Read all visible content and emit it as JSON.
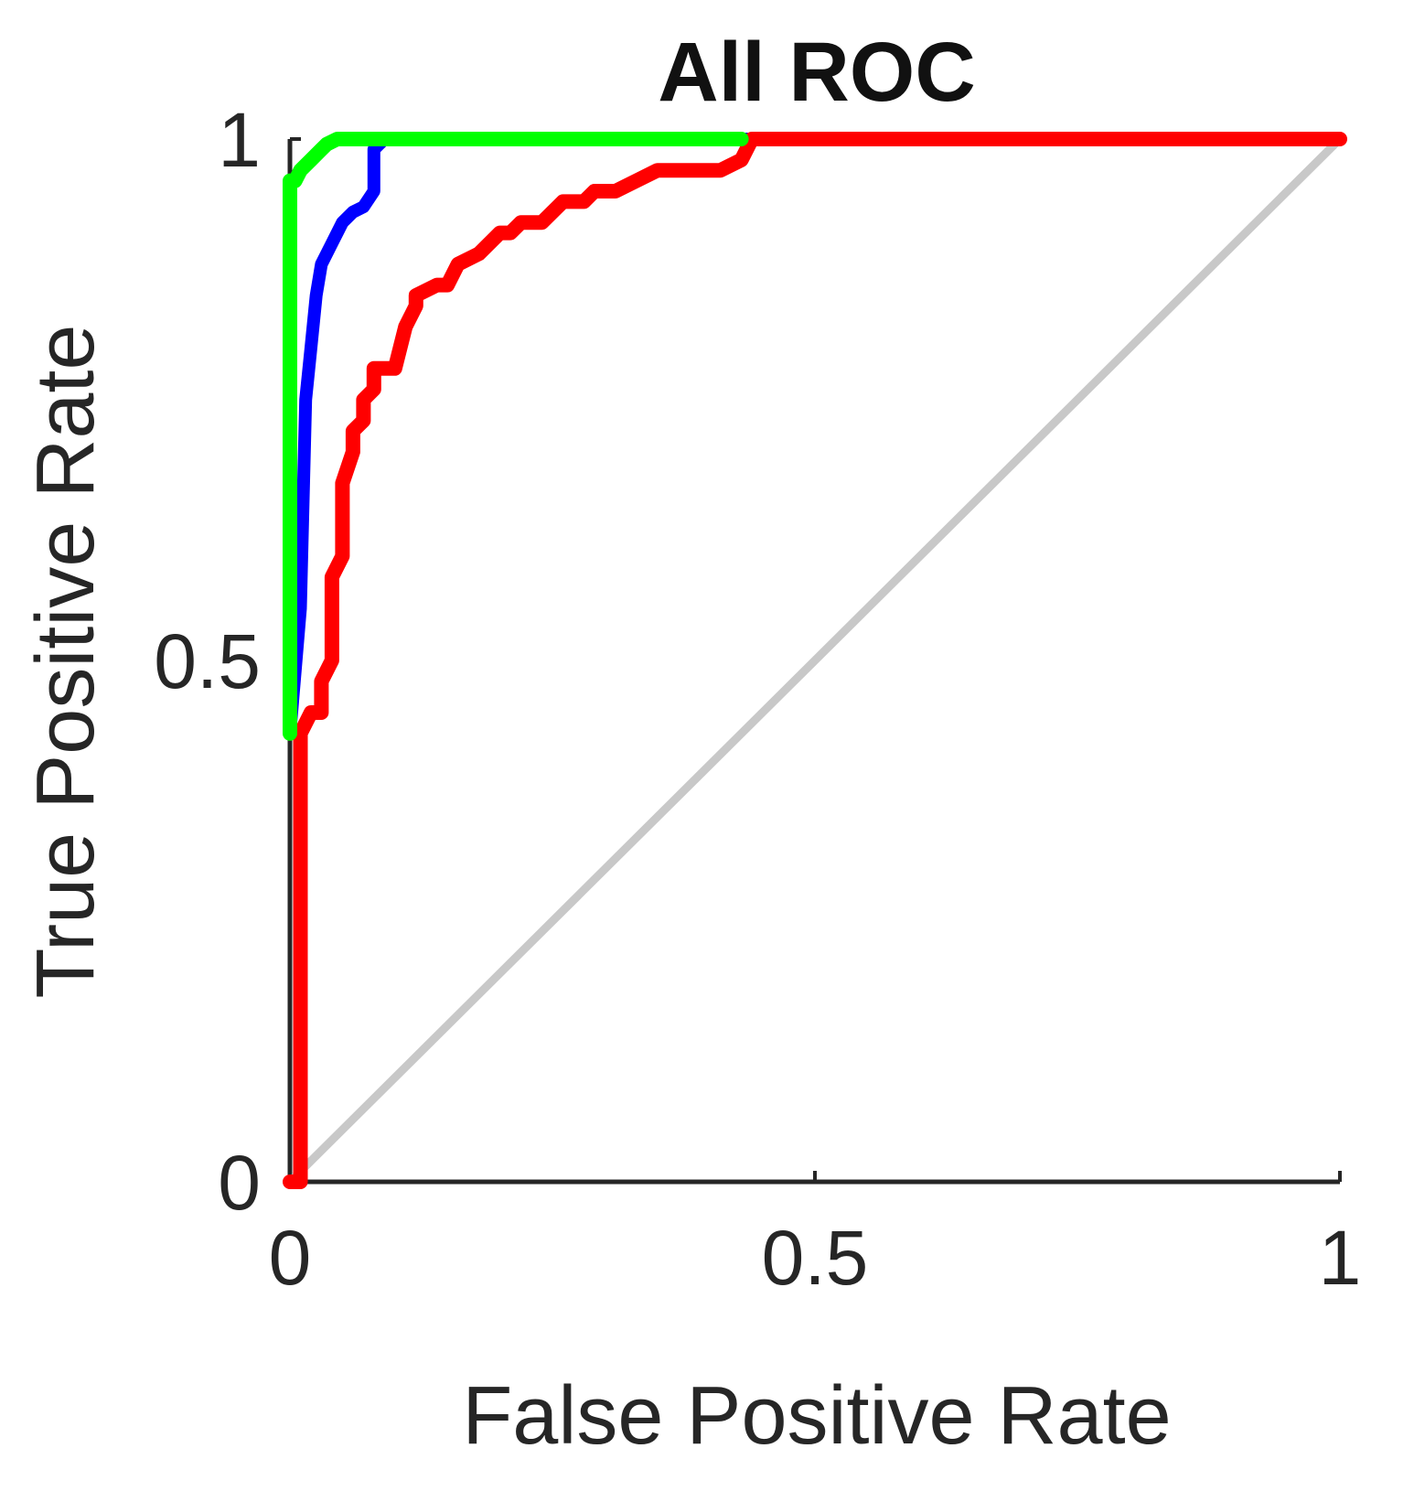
{
  "chart_data": {
    "type": "line",
    "title": "All ROC",
    "xlabel": "False Positive Rate",
    "ylabel": "True Positive Rate",
    "xlim": [
      0,
      1
    ],
    "ylim": [
      0,
      1
    ],
    "xticks": [
      0,
      0.5,
      1
    ],
    "yticks": [
      0,
      0.5,
      1
    ],
    "xtick_labels": [
      "0",
      "0.5",
      "1"
    ],
    "ytick_labels": [
      "0",
      "0.5",
      "1"
    ],
    "grid": false,
    "legend": "none",
    "series": [
      {
        "color": "#c8c8c8",
        "x": [
          0,
          1
        ],
        "y": [
          0,
          1
        ]
      },
      {
        "color": "#0000ff",
        "x": [
          0,
          0.01,
          0.015,
          0.02,
          0.025,
          0.03,
          0.04,
          0.05,
          0.06,
          0.07,
          0.08,
          0.08,
          0.09,
          0.1,
          0.12,
          1
        ],
        "y": [
          0.43,
          0.55,
          0.75,
          0.8,
          0.85,
          0.88,
          0.9,
          0.92,
          0.93,
          0.935,
          0.95,
          0.99,
          1,
          1,
          1,
          1
        ]
      },
      {
        "color": "#ff0000",
        "x": [
          0,
          0.01,
          0.01,
          0.02,
          0.03,
          0.03,
          0.04,
          0.04,
          0.05,
          0.05,
          0.06,
          0.06,
          0.07,
          0.07,
          0.08,
          0.08,
          0.1,
          0.11,
          0.12,
          0.12,
          0.14,
          0.15,
          0.16,
          0.18,
          0.2,
          0.21,
          0.22,
          0.24,
          0.26,
          0.28,
          0.29,
          0.31,
          0.33,
          0.35,
          0.37,
          0.41,
          0.43,
          0.44,
          1
        ],
        "y": [
          0,
          0,
          0.43,
          0.45,
          0.45,
          0.48,
          0.5,
          0.58,
          0.6,
          0.67,
          0.7,
          0.72,
          0.73,
          0.75,
          0.76,
          0.78,
          0.78,
          0.82,
          0.84,
          0.85,
          0.86,
          0.86,
          0.88,
          0.89,
          0.91,
          0.91,
          0.92,
          0.92,
          0.94,
          0.94,
          0.95,
          0.95,
          0.96,
          0.97,
          0.97,
          0.97,
          0.98,
          1,
          1
        ]
      },
      {
        "color": "#00ff00",
        "x": [
          0,
          0,
          0,
          0.005,
          0.01,
          0.02,
          0.03,
          0.035,
          0.045,
          0.06,
          0.07,
          0.43
        ],
        "y": [
          0.43,
          0.78,
          0.96,
          0.96,
          0.97,
          0.98,
          0.99,
          0.995,
          1,
          1,
          1,
          1
        ]
      }
    ]
  }
}
